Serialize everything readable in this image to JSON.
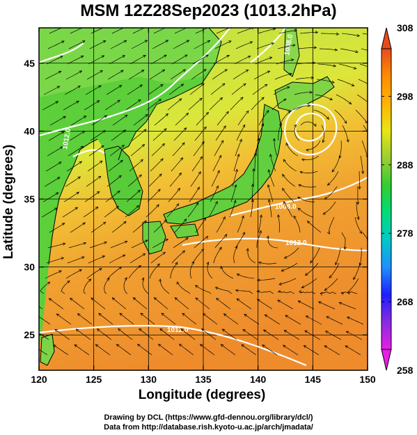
{
  "title": "MSM 12Z28Sep2023 (1013.2hPa)",
  "axes": {
    "xlabel": "Longitude (degrees)",
    "ylabel": "Latitude  (degrees)",
    "xlim": [
      120,
      150
    ],
    "ylim": [
      22.4,
      47.6
    ],
    "xticks": [
      120,
      125,
      130,
      135,
      140,
      145,
      150
    ],
    "yticks": [
      25,
      30,
      35,
      40,
      45
    ],
    "grid": true
  },
  "colorbar": {
    "min": 258,
    "max": 308,
    "ticks": [
      258,
      268,
      278,
      288,
      298,
      308
    ],
    "colors": [
      "#e61ee6",
      "#8a2be2",
      "#1e1eff",
      "#1e90ff",
      "#00c8c8",
      "#00dc78",
      "#32cd32",
      "#9acd32",
      "#e6e614",
      "#ffb400",
      "#ff8c00",
      "#e64b1e"
    ]
  },
  "field": {
    "colors": {
      "ocean_south": "#f09030",
      "ocean_mid": "#f4b030",
      "land_green": "#5ad23c",
      "land_north": "#8ce050",
      "sea_north": "#aee040",
      "isobar": "#ffffff",
      "coast": "#000000"
    }
  },
  "isobar_labels": [
    "1012.0",
    "1012.0",
    "1008.0",
    "1012.0",
    "1008.0"
  ],
  "credits": {
    "line1": "Drawing by DCL (https://www.gfd-dennou.org/library/dcl/)",
    "line2": "Data from http://database.rish.kyoto-u.ac.jp/arch/jmadata/"
  }
}
